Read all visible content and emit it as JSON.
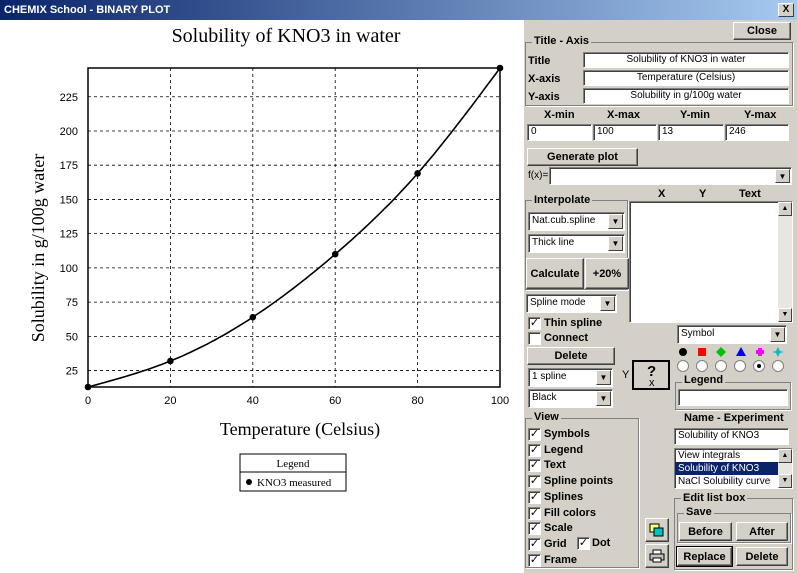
{
  "window": {
    "title": "CHEMIX School - BINARY PLOT",
    "close_glyph": "X"
  },
  "chart_data": {
    "type": "line",
    "title": "Solubility of KNO3 in water",
    "xlabel": "Temperature (Celsius)",
    "ylabel": "Solubility in g/100g water",
    "xlim": [
      0,
      100
    ],
    "ylim": [
      13,
      246
    ],
    "xticks": [
      0,
      20,
      40,
      60,
      80,
      100
    ],
    "yticks": [
      25,
      50,
      75,
      100,
      125,
      150,
      175,
      200,
      225
    ],
    "grid": true,
    "series": [
      {
        "name": "KNO3 measured",
        "x": [
          0,
          20,
          40,
          60,
          80,
          100
        ],
        "y": [
          13,
          32,
          64,
          110,
          169,
          246
        ]
      }
    ],
    "legend": {
      "title": "Legend",
      "placement": "below"
    }
  },
  "panel": {
    "close_label": "Close",
    "title_axis": {
      "header": "Title - Axis",
      "title_label": "Title",
      "title_value": "Solubility of KNO3 in water",
      "xaxis_label": "X-axis",
      "xaxis_value": "Temperature (Celsius)",
      "yaxis_label": "Y-axis",
      "yaxis_value": "Solubility in g/100g water"
    },
    "ranges": {
      "headers": [
        "X-min",
        "X-max",
        "Y-min",
        "Y-max"
      ],
      "values": [
        "0",
        "100",
        "13",
        "246"
      ]
    },
    "generate_label": "Generate plot",
    "fx_label": "f(x)=",
    "fx_value": "",
    "interpolate": {
      "header": "Interpolate",
      "method": "Nat.cub.spline",
      "line": "Thick line",
      "calculate_label": "Calculate",
      "plus20_label": "+20%",
      "mode": "Spline mode"
    },
    "table_headers": {
      "x": "X",
      "y": "Y",
      "text": "Text"
    },
    "thin_spline_label": "Thin spline",
    "connect_label": "Connect",
    "delete_label": "Delete",
    "spline_select": "1   spline",
    "color_select": "Black",
    "symbol_select": "Symbol",
    "help": {
      "y": "Y",
      "q": "?",
      "x": "x"
    },
    "legend_label": "Legend",
    "legend_value": "",
    "symbol_colors": [
      "#000000",
      "#ff0000",
      "#00c000",
      "#0000ff",
      "#ff00ff",
      "#00c0c0"
    ],
    "symbol_selected_index": 4,
    "view": {
      "header": "View",
      "items": [
        {
          "label": "Symbols",
          "checked": true
        },
        {
          "label": "Legend",
          "checked": true
        },
        {
          "label": "Text",
          "checked": true
        },
        {
          "label": "Spline points",
          "checked": true
        },
        {
          "label": "Splines",
          "checked": true
        },
        {
          "label": "Fill colors",
          "checked": true
        },
        {
          "label": "Scale",
          "checked": true
        },
        {
          "label": "Grid",
          "checked": true
        },
        {
          "label": "Frame",
          "checked": true
        }
      ],
      "dot_label": "Dot",
      "dot_checked": true
    },
    "experiment": {
      "header": "Name - Experiment",
      "name_value": "Solubility of KNO3",
      "list": [
        "View integrals",
        "Solubility of KNO3",
        "NaCl Solubility curve"
      ],
      "selected_index": 1
    },
    "edit_list": {
      "header": "Edit list box",
      "save_header": "Save",
      "before_label": "Before",
      "after_label": "After",
      "replace_label": "Replace",
      "delete_label": "Delete"
    }
  }
}
